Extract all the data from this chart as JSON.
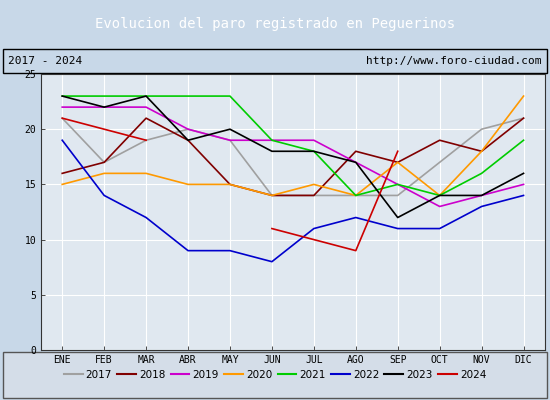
{
  "title": "Evolucion del paro registrado en Peguerinos",
  "subtitle_left": "2017 - 2024",
  "subtitle_right": "http://www.foro-ciudad.com",
  "months": [
    "ENE",
    "FEB",
    "MAR",
    "ABR",
    "MAY",
    "JUN",
    "JUL",
    "AGO",
    "SEP",
    "OCT",
    "NOV",
    "DIC"
  ],
  "ylim": [
    0,
    25
  ],
  "yticks": [
    0,
    5,
    10,
    15,
    20,
    25
  ],
  "series": {
    "2017": {
      "color": "#a0a0a0",
      "data": [
        21,
        17,
        19,
        20,
        19,
        14,
        14,
        14,
        14,
        17,
        20,
        21
      ]
    },
    "2018": {
      "color": "#800000",
      "data": [
        16,
        17,
        21,
        19,
        15,
        14,
        14,
        18,
        17,
        19,
        18,
        21
      ]
    },
    "2019": {
      "color": "#cc00cc",
      "data": [
        22,
        22,
        22,
        20,
        19,
        19,
        19,
        17,
        15,
        13,
        14,
        15
      ]
    },
    "2020": {
      "color": "#ff9900",
      "data": [
        15,
        16,
        16,
        15,
        15,
        14,
        15,
        14,
        17,
        14,
        18,
        23
      ]
    },
    "2021": {
      "color": "#00cc00",
      "data": [
        23,
        23,
        23,
        23,
        23,
        19,
        18,
        14,
        15,
        14,
        16,
        19
      ]
    },
    "2022": {
      "color": "#0000cc",
      "data": [
        19,
        14,
        12,
        9,
        9,
        8,
        11,
        12,
        11,
        11,
        13,
        14
      ]
    },
    "2023": {
      "color": "#000000",
      "data": [
        23,
        22,
        23,
        19,
        20,
        18,
        18,
        17,
        12,
        14,
        14,
        16
      ]
    },
    "2024": {
      "color": "#cc0000",
      "data": [
        21,
        20,
        19,
        null,
        null,
        11,
        10,
        9,
        18,
        null,
        null,
        null
      ]
    }
  },
  "background_color": "#c8d8e8",
  "plot_bg_color": "#e0e8f0",
  "title_bg_color": "#5b8dd9",
  "title_color": "#ffffff",
  "grid_color": "#ffffff",
  "legend_box_color": "#d4dde8"
}
